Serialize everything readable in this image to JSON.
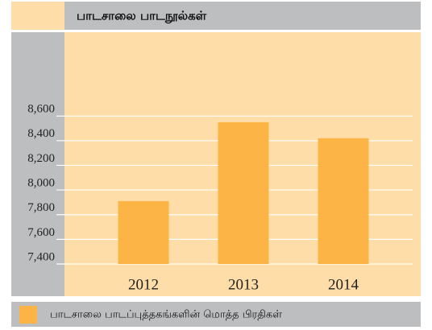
{
  "chart_data": {
    "type": "bar",
    "title": "பாடசாலை பாடநூல்கள்",
    "categories": [
      "2012",
      "2013",
      "2014"
    ],
    "series": [
      {
        "name": "பாடசாலை பாடப்புத்தகங்களின் மொத்த பிரதிகள்",
        "color": "#fdb446",
        "values": [
          7910,
          8550,
          8420
        ]
      }
    ],
    "ylim": [
      7400,
      9280
    ],
    "yticks": [
      {
        "value": 7400,
        "label": "7,400"
      },
      {
        "value": 7600,
        "label": "7,600"
      },
      {
        "value": 7800,
        "label": "7,800"
      },
      {
        "value": 8000,
        "label": "8,000"
      },
      {
        "value": 8200,
        "label": "8,200"
      },
      {
        "value": 8400,
        "label": "8,400"
      },
      {
        "value": 8600,
        "label": "8,600"
      }
    ],
    "grid": true
  }
}
